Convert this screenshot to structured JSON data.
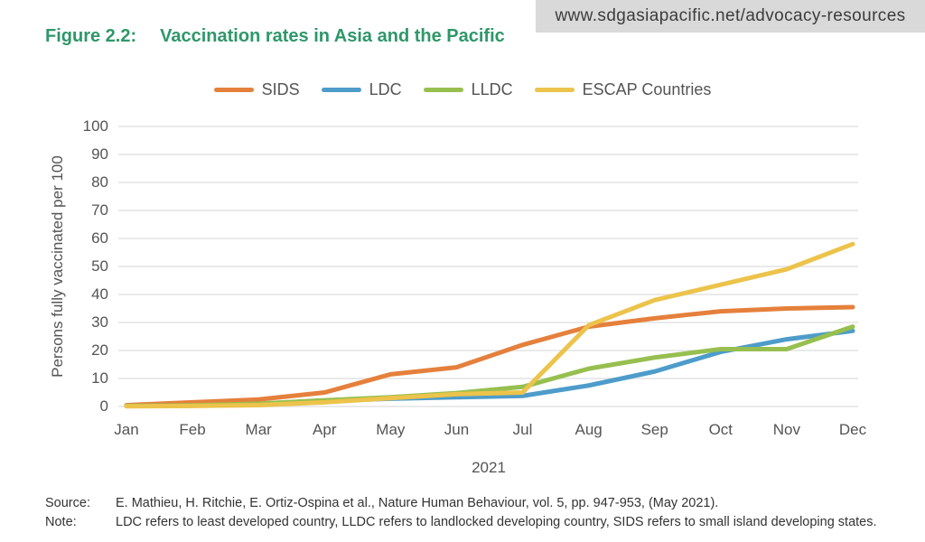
{
  "banner": {
    "url": "www.sdgasiapacific.net/advocacy-resources"
  },
  "figure": {
    "label": "Figure 2.2:",
    "title": "Vaccination rates in Asia and the Pacific",
    "title_color": "#2e9769"
  },
  "chart_data": {
    "type": "line",
    "x": [
      "Jan",
      "Feb",
      "Mar",
      "Apr",
      "May",
      "Jun",
      "Jul",
      "Aug",
      "Sep",
      "Oct",
      "Nov",
      "Dec"
    ],
    "xlabel": "2021",
    "ylabel": "Persons fully vaccinated per 100",
    "ylim": [
      0,
      100
    ],
    "ytick_step": 10,
    "grid": true,
    "gridline_color": "#e3e3e3",
    "legend_position": "top",
    "series": [
      {
        "name": "SIDS",
        "color": "#e5803c",
        "values": [
          0.5,
          1.5,
          2.5,
          5,
          11.5,
          14,
          22,
          28.5,
          31.5,
          34,
          35,
          35.5
        ]
      },
      {
        "name": "LDC",
        "color": "#4d9cca",
        "values": [
          0.2,
          0.3,
          0.8,
          2,
          2.8,
          3.3,
          3.8,
          7.5,
          12.5,
          19.5,
          24,
          27
        ]
      },
      {
        "name": "LLDC",
        "color": "#97bf4f",
        "values": [
          0.2,
          0.4,
          1,
          2.2,
          3.3,
          4.8,
          7,
          13.5,
          17.5,
          20.5,
          20.5,
          28.5
        ]
      },
      {
        "name": "ESCAP Countries",
        "color": "#ecc34b",
        "values": [
          0.1,
          0.2,
          0.5,
          1.5,
          3,
          4.4,
          5,
          29,
          38,
          43.5,
          49,
          58
        ]
      }
    ]
  },
  "footer": {
    "source_label": "Source:",
    "source_text": "E. Mathieu, H. Ritchie, E. Ortiz-Ospina et al., Nature Human Behaviour, vol. 5, pp. 947-953, (May 2021).",
    "note_label": "Note:",
    "note_text": "LDC refers to least developed country, LLDC refers to landlocked developing country, SIDS refers to small island developing states."
  }
}
